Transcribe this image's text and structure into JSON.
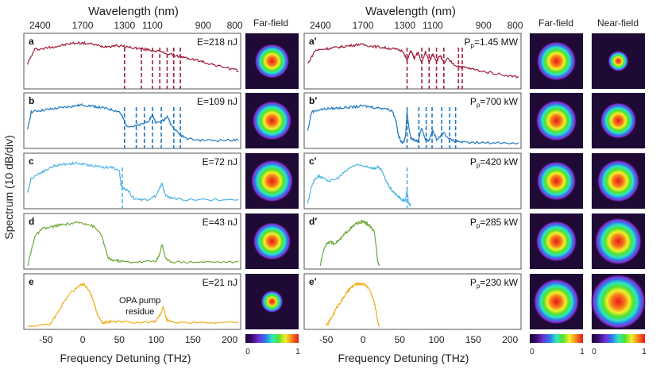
{
  "chart_data": {
    "type": "line",
    "title": "",
    "ylabel": "Spectrum (10 dB/div)",
    "top_axis_label": "Wavelength (nm)",
    "bottom_axis_label": "Frequency Detuning (THz)",
    "xlim": [
      -80,
      215
    ],
    "x_ticks": [
      "-50",
      "0",
      "50",
      "100",
      "150",
      "200"
    ],
    "x_tick_values": [
      -50,
      0,
      50,
      100,
      150,
      200
    ],
    "wavelength_ticks": [
      "2400",
      "1700",
      "1300",
      "1100",
      "900",
      "800"
    ],
    "wavelength_tick_detuning": [
      -58,
      0,
      57,
      95,
      164,
      207
    ],
    "y_divisions_db": 10,
    "column_headers": {
      "far_field": "Far-field",
      "near_field": "Near-field"
    },
    "colorbar": {
      "min_label": "0",
      "max_label": "1"
    },
    "annotation": "OPA pump residue",
    "left_panels": [
      {
        "id": "a",
        "label": "E=218 nJ",
        "color": "#a21d3c",
        "x": [
          -75,
          -65,
          -55,
          -45,
          -35,
          -25,
          -15,
          -5,
          5,
          15,
          25,
          35,
          45,
          55,
          65,
          75,
          85,
          95,
          105,
          115,
          125,
          135,
          145,
          155,
          165,
          175,
          185,
          195,
          205,
          212
        ],
        "y": [
          0.45,
          0.74,
          0.75,
          0.78,
          0.8,
          0.83,
          0.86,
          0.87,
          0.86,
          0.84,
          0.8,
          0.8,
          0.82,
          0.8,
          0.78,
          0.76,
          0.74,
          0.72,
          0.7,
          0.65,
          0.62,
          0.58,
          0.55,
          0.52,
          0.48,
          0.44,
          0.4,
          0.37,
          0.33,
          0.3
        ],
        "dashed_lines": [
          57,
          80,
          95,
          105,
          115,
          124,
          133
        ]
      },
      {
        "id": "b",
        "label": "E=109 nJ",
        "color": "#1f78c1",
        "x": [
          -75,
          -70,
          -60,
          -50,
          -40,
          -30,
          -20,
          -10,
          0,
          10,
          20,
          30,
          40,
          50,
          55,
          60,
          70,
          80,
          90,
          95,
          100,
          110,
          115,
          120,
          130,
          140,
          160,
          180,
          200,
          212
        ],
        "y": [
          0.3,
          0.68,
          0.7,
          0.72,
          0.74,
          0.76,
          0.78,
          0.8,
          0.82,
          0.8,
          0.78,
          0.75,
          0.72,
          0.68,
          0.55,
          0.4,
          0.38,
          0.42,
          0.5,
          0.62,
          0.45,
          0.5,
          0.6,
          0.42,
          0.25,
          0.14,
          0.1,
          0.1,
          0.1,
          0.1
        ],
        "dashed_lines": [
          57,
          73,
          84,
          95,
          107,
          124,
          133
        ]
      },
      {
        "id": "c",
        "label": "E=72 nJ",
        "color": "#4db3e6",
        "x": [
          -75,
          -70,
          -60,
          -50,
          -40,
          -30,
          -20,
          -10,
          0,
          10,
          20,
          30,
          40,
          50,
          52,
          55,
          60,
          70,
          80,
          90,
          100,
          105,
          108,
          112,
          120,
          140,
          170,
          212
        ],
        "y": [
          0.25,
          0.55,
          0.65,
          0.72,
          0.8,
          0.83,
          0.85,
          0.86,
          0.84,
          0.82,
          0.8,
          0.78,
          0.78,
          0.7,
          0.45,
          0.35,
          0.33,
          0.15,
          0.12,
          0.13,
          0.2,
          0.35,
          0.45,
          0.22,
          0.15,
          0.12,
          0.12,
          0.12
        ],
        "dashed_lines": [
          54
        ]
      },
      {
        "id": "d",
        "label": "E=43 nJ",
        "color": "#6ea83a",
        "x": [
          -75,
          -70,
          -65,
          -55,
          -45,
          -35,
          -25,
          -15,
          -5,
          5,
          15,
          25,
          30,
          35,
          40,
          50,
          60,
          80,
          100,
          104,
          108,
          112,
          116,
          125,
          150,
          180,
          212
        ],
        "y": [
          0.0,
          0.3,
          0.6,
          0.75,
          0.78,
          0.82,
          0.84,
          0.86,
          0.88,
          0.86,
          0.8,
          0.65,
          0.4,
          0.15,
          0.12,
          0.1,
          0.08,
          0.08,
          0.1,
          0.2,
          0.45,
          0.2,
          0.1,
          0.08,
          0.08,
          0.08,
          0.08
        ],
        "dashed_lines": []
      },
      {
        "id": "e",
        "label": "E=21 nJ",
        "color": "#f0ad1a",
        "x": [
          -75,
          -45,
          -35,
          -25,
          -15,
          -5,
          0,
          5,
          10,
          15,
          20,
          25,
          28,
          32,
          40,
          60,
          90,
          100,
          106,
          110,
          114,
          120,
          140,
          170,
          212
        ],
        "y": [
          0.0,
          0.02,
          0.25,
          0.5,
          0.7,
          0.8,
          0.86,
          0.8,
          0.7,
          0.5,
          0.25,
          0.1,
          0.05,
          0.08,
          0.1,
          0.08,
          0.08,
          0.1,
          0.25,
          0.4,
          0.15,
          0.08,
          0.08,
          0.08,
          0.08
        ],
        "dashed_lines": []
      }
    ],
    "right_panels": [
      {
        "id": "a′",
        "label": "P",
        "label_sub": "p",
        "label_tail": "=1.45 MW",
        "color": "#a21d3c",
        "x": [
          -75,
          -65,
          -55,
          -45,
          -35,
          -25,
          -15,
          -5,
          5,
          15,
          25,
          35,
          45,
          55,
          60,
          65,
          70,
          75,
          80,
          85,
          90,
          95,
          100,
          105,
          110,
          115,
          125,
          135,
          145,
          160,
          180,
          200,
          212
        ],
        "y": [
          0.45,
          0.72,
          0.74,
          0.76,
          0.78,
          0.8,
          0.82,
          0.84,
          0.82,
          0.8,
          0.78,
          0.76,
          0.74,
          0.7,
          0.5,
          0.72,
          0.55,
          0.68,
          0.45,
          0.7,
          0.48,
          0.65,
          0.5,
          0.62,
          0.45,
          0.55,
          0.42,
          0.38,
          0.35,
          0.3,
          0.25,
          0.2,
          0.18
        ],
        "dashed_lines": [
          60,
          80,
          90,
          100,
          110,
          130,
          135
        ]
      },
      {
        "id": "b′",
        "label": "P",
        "label_sub": "p",
        "label_tail": "=700 kW",
        "color": "#1f78c1",
        "x": [
          -75,
          -70,
          -60,
          -50,
          -40,
          -30,
          -20,
          -10,
          0,
          10,
          20,
          30,
          40,
          45,
          48,
          52,
          55,
          58,
          60,
          62,
          65,
          70,
          75,
          80,
          85,
          90,
          95,
          100,
          110,
          120,
          130,
          140,
          160,
          180,
          212
        ],
        "y": [
          0.3,
          0.68,
          0.72,
          0.74,
          0.75,
          0.76,
          0.77,
          0.78,
          0.8,
          0.78,
          0.76,
          0.75,
          0.7,
          0.5,
          0.2,
          0.08,
          0.05,
          0.2,
          0.7,
          0.4,
          0.15,
          0.1,
          0.08,
          0.35,
          0.12,
          0.1,
          0.3,
          0.12,
          0.25,
          0.1,
          0.08,
          0.05,
          0.05,
          0.05,
          0.05
        ],
        "dashed_lines": [
          60,
          76,
          86,
          94,
          107,
          118,
          126
        ]
      },
      {
        "id": "c′",
        "label": "P",
        "label_sub": "p",
        "label_tail": "=420 kW",
        "color": "#4db3e6",
        "x": [
          -75,
          -70,
          -65,
          -60,
          -55,
          -45,
          -35,
          -25,
          -15,
          -5,
          5,
          15,
          20,
          25,
          30,
          35,
          40,
          45,
          50,
          55,
          58,
          60,
          62,
          65
        ],
        "y": [
          0.05,
          0.4,
          0.55,
          0.6,
          0.55,
          0.5,
          0.55,
          0.68,
          0.8,
          0.82,
          0.8,
          0.75,
          0.78,
          0.72,
          0.55,
          0.4,
          0.3,
          0.22,
          0.15,
          0.1,
          0.12,
          0.3,
          0.05,
          0.0
        ],
        "dashed_lines": [
          60
        ]
      },
      {
        "id": "d′",
        "label": "P",
        "label_sub": "p",
        "label_tail": "=285 kW",
        "color": "#6ea83a",
        "x": [
          -58,
          -55,
          -50,
          -45,
          -40,
          -35,
          -30,
          -25,
          -20,
          -15,
          -10,
          -5,
          0,
          5,
          10,
          15,
          18,
          20,
          22
        ],
        "y": [
          0.0,
          0.25,
          0.45,
          0.5,
          0.45,
          0.5,
          0.55,
          0.65,
          0.72,
          0.78,
          0.85,
          0.88,
          0.9,
          0.86,
          0.8,
          0.7,
          0.4,
          0.1,
          0.0
        ],
        "dashed_lines": []
      },
      {
        "id": "e′",
        "label": "P",
        "label_sub": "p",
        "label_tail": "=230 kW",
        "color": "#f0ad1a",
        "x": [
          -50,
          -45,
          -40,
          -35,
          -30,
          -25,
          -20,
          -15,
          -10,
          -5,
          0,
          5,
          10,
          15,
          18,
          20,
          22
        ],
        "y": [
          0.0,
          0.12,
          0.25,
          0.4,
          0.5,
          0.62,
          0.72,
          0.8,
          0.85,
          0.86,
          0.86,
          0.82,
          0.72,
          0.5,
          0.3,
          0.1,
          0.0
        ],
        "dashed_lines": []
      }
    ]
  }
}
